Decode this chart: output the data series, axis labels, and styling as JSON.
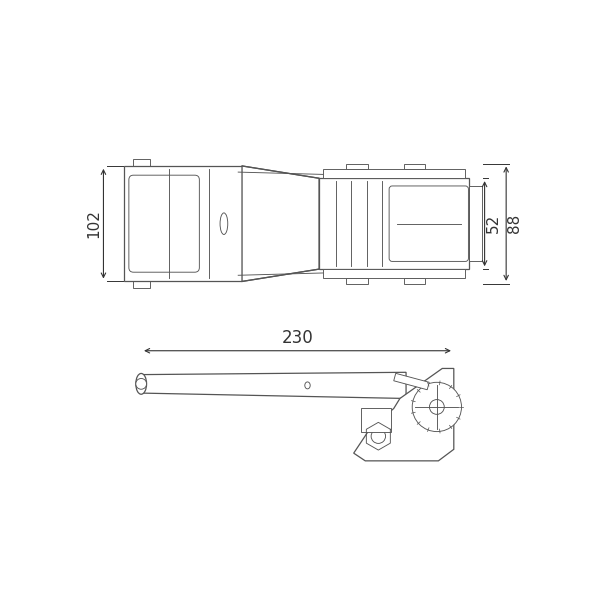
{
  "bg_color": "#ffffff",
  "line_color": "#555555",
  "dim_color": "#333333",
  "lw_main": 0.9,
  "lw_thin": 0.65,
  "label_102": "102",
  "label_52": "52",
  "label_88": "88",
  "label_230": "230"
}
